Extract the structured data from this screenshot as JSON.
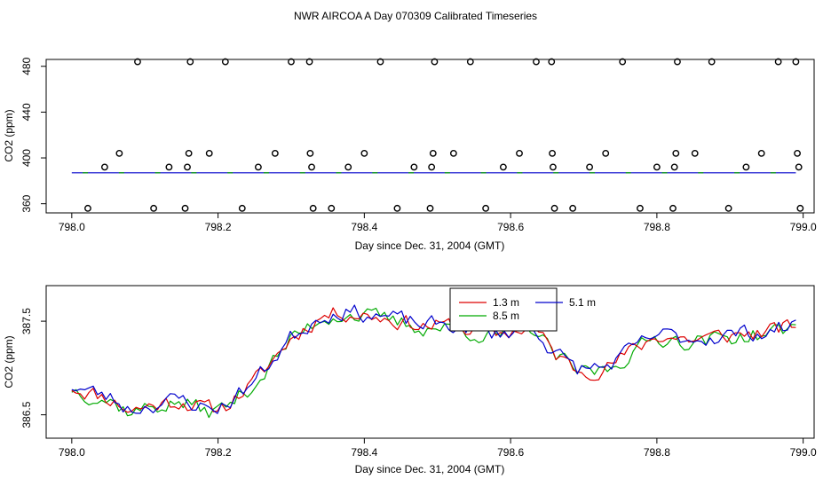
{
  "title": "NWR AIRCOA A  Day 070309  Calibrated Timeseries",
  "chart_data": [
    {
      "type": "scatter",
      "ylabel": "CO2 (ppm)",
      "xlabel": "Day since Dec. 31, 2004 (GMT)",
      "xlim": [
        797.965,
        799.015
      ],
      "ylim": [
        352,
        486
      ],
      "xticks": [
        798.0,
        798.2,
        798.4,
        798.6,
        798.8,
        799.0
      ],
      "xtick_labels": [
        "798.0",
        "798.2",
        "798.4",
        "798.6",
        "798.8",
        "799.0"
      ],
      "yticks": [
        360,
        400,
        440,
        480
      ],
      "ytick_labels": [
        "360",
        "400",
        "440",
        "480"
      ],
      "baseline": {
        "x": [
          798.0,
          798.99
        ],
        "value": 387.0,
        "colors": [
          "#0000cc",
          "#00a000"
        ]
      },
      "points": {
        "x": [
          798.022,
          798.045,
          798.065,
          798.09,
          798.112,
          798.133,
          798.155,
          798.158,
          798.16,
          798.162,
          798.188,
          798.21,
          798.233,
          798.255,
          798.278,
          798.3,
          798.325,
          798.326,
          798.328,
          798.33,
          798.355,
          798.378,
          798.4,
          798.422,
          798.445,
          798.468,
          798.49,
          798.492,
          798.494,
          798.496,
          798.522,
          798.545,
          798.566,
          798.59,
          798.612,
          798.635,
          798.656,
          798.657,
          798.658,
          798.66,
          798.685,
          798.708,
          798.73,
          798.753,
          798.777,
          798.8,
          798.822,
          798.824,
          798.826,
          798.828,
          798.852,
          798.875,
          798.898,
          798.922,
          798.943,
          798.966,
          798.99,
          798.992,
          798.994,
          798.996
        ],
        "y": [
          356,
          392,
          404,
          484,
          356,
          392,
          356,
          392,
          404,
          484,
          404,
          484,
          356,
          392,
          404,
          484,
          484,
          404,
          392,
          356,
          356,
          392,
          404,
          484,
          356,
          392,
          356,
          392,
          404,
          484,
          404,
          484,
          356,
          392,
          404,
          484,
          484,
          404,
          392,
          356,
          356,
          392,
          404,
          484,
          356,
          392,
          356,
          392,
          404,
          484,
          404,
          484,
          356,
          392,
          404,
          484,
          484,
          404,
          392,
          356
        ]
      }
    },
    {
      "type": "line",
      "ylabel": "CO2 (ppm)",
      "xlabel": "Day since Dec. 31, 2004 (GMT)",
      "xlim": [
        797.965,
        799.015
      ],
      "ylim": [
        386.25,
        387.88
      ],
      "xticks": [
        798.0,
        798.2,
        798.4,
        798.6,
        798.8,
        799.0
      ],
      "xtick_labels": [
        "798.0",
        "798.2",
        "798.4",
        "798.6",
        "798.8",
        "799.0"
      ],
      "yticks": [
        386.5,
        387.5
      ],
      "ytick_labels": [
        "386.5",
        "387.5"
      ],
      "legend": {
        "position": "top-center"
      },
      "series": [
        {
          "name": "1.3 m",
          "color": "#dd0000",
          "seed": 11,
          "offset": 0.0
        },
        {
          "name": "5.1 m",
          "color": "#0000cc",
          "seed": 23,
          "offset": 0.01
        },
        {
          "name": "8.5 m",
          "color": "#00aa00",
          "seed": 37,
          "offset": -0.02
        }
      ],
      "trend_x": [
        798.0,
        798.05,
        798.08,
        798.12,
        798.15,
        798.19,
        798.21,
        798.25,
        798.3,
        798.34,
        798.37,
        798.42,
        798.48,
        798.52,
        798.58,
        798.63,
        798.66,
        798.69,
        798.73,
        798.76,
        798.8,
        798.85,
        798.9,
        798.95,
        798.99
      ],
      "trend_y": [
        386.8,
        386.68,
        386.55,
        386.62,
        386.65,
        386.55,
        386.6,
        386.85,
        387.32,
        387.55,
        387.6,
        387.55,
        387.45,
        387.45,
        387.35,
        387.45,
        387.15,
        386.98,
        387.0,
        387.15,
        387.35,
        387.3,
        387.35,
        387.38,
        387.45
      ],
      "n_points": 170
    }
  ]
}
